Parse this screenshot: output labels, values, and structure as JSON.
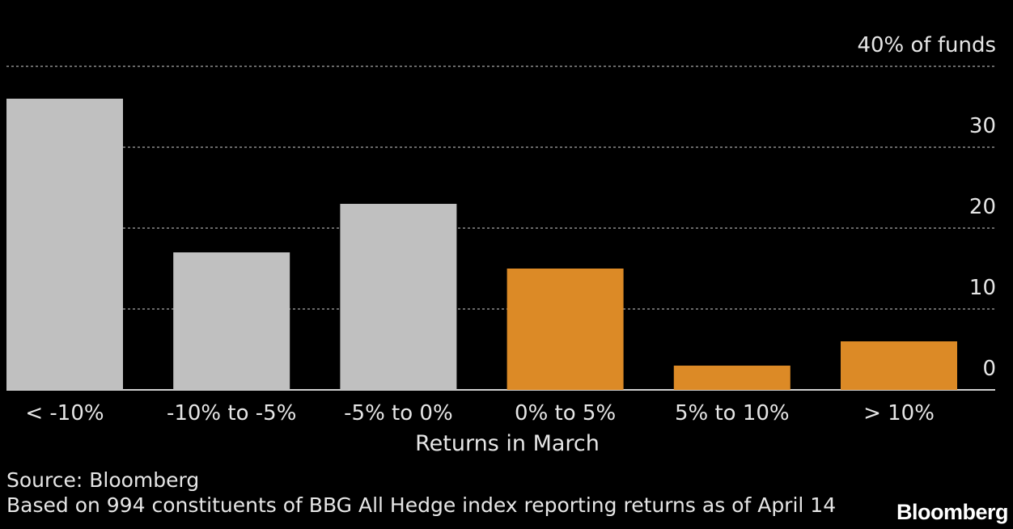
{
  "chart_data": {
    "type": "bar",
    "categories": [
      "< -10%",
      "-10% to -5%",
      "-5% to 0%",
      "0% to 5%",
      "5% to 10%",
      "> 10%"
    ],
    "values": [
      36,
      17,
      23,
      15,
      3,
      6
    ],
    "bar_colors": [
      "#c0c0c0",
      "#c0c0c0",
      "#c0c0c0",
      "#dc8a26",
      "#dc8a26",
      "#dc8a26"
    ],
    "ylim": [
      0,
      40
    ],
    "yticks": [
      0,
      10,
      20,
      30,
      40
    ],
    "ytick_labels": [
      "0",
      "10",
      "20",
      "30",
      "40% of funds"
    ],
    "xlabel": "Returns in March",
    "ylabel": "",
    "title": "",
    "grid": true,
    "axis_position": "right"
  },
  "footer": {
    "source": "Source: Bloomberg",
    "note": "Based on 994 constituents of BBG All Hedge index reporting returns as of April 14",
    "brand": "Bloomberg"
  },
  "colors": {
    "background": "#000000",
    "negative_bars": "#c0c0c0",
    "positive_bars": "#dc8a26",
    "text": "#e6e6e6",
    "grid": "#8a8a8a"
  }
}
